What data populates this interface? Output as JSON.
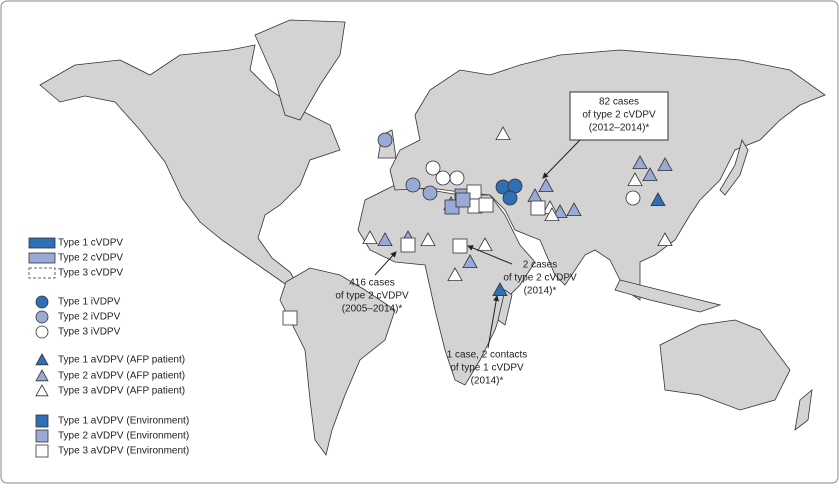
{
  "legend": {
    "items": [
      {
        "label": "Type 1 cVDPV"
      },
      {
        "label": "Type 2 cVDPV"
      },
      {
        "label": "Type 3 cVDPV"
      },
      {
        "label": "Type 1 iVDPV"
      },
      {
        "label": "Type 2 iVDPV"
      },
      {
        "label": "Type 3 iVDPV"
      },
      {
        "label": "Type 1 aVDPV (AFP patient)"
      },
      {
        "label": "Type 2 aVDPV (AFP patient)"
      },
      {
        "label": "Type 3 aVDPV (AFP patient)"
      },
      {
        "label": "Type 1 aVDPV (Environment)"
      },
      {
        "label": "Type 2 aVDPV (Environment)"
      },
      {
        "label": "Type 3 aVDPV (Environment)"
      }
    ]
  },
  "annotations": [
    {
      "lines": [
        "82 cases",
        "of type 2 cVDPV",
        "(2012–2014)*"
      ]
    },
    {
      "lines": [
        "416 cases",
        "of type 2 cVDPV",
        "(2005–2014)*"
      ]
    },
    {
      "lines": [
        "2 cases",
        "of type 2 cVDPV",
        "(2014)*"
      ]
    },
    {
      "lines": [
        "1 case, 2 contacts",
        "of type 1 cVDPV",
        "(2014)*"
      ]
    }
  ]
}
